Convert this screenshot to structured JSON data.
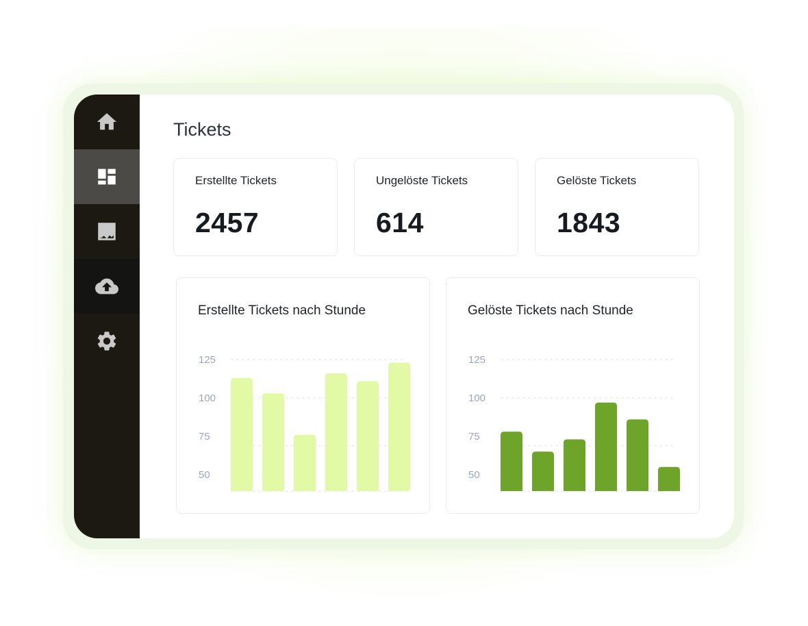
{
  "sidebar": {
    "items": [
      {
        "icon": "home-icon",
        "label": "Home"
      },
      {
        "icon": "dashboard-icon",
        "label": "Dashboard"
      },
      {
        "icon": "analytics-icon",
        "label": "Analytics"
      },
      {
        "icon": "cloud-upload-icon",
        "label": "Upload"
      },
      {
        "icon": "gear-icon",
        "label": "Settings"
      }
    ],
    "active_index": 1
  },
  "page": {
    "title": "Tickets"
  },
  "stats": [
    {
      "label": "Erstellte Tickets",
      "value": "2457"
    },
    {
      "label": "Ungelöste Tickets",
      "value": "614"
    },
    {
      "label": "Gelöste Tickets",
      "value": "1843"
    }
  ],
  "colors": {
    "sidebar_bg": "#1c1912",
    "created_bar": "#e2f9a6",
    "resolved_bar": "#6fa42a",
    "tick_text": "#9aa6bd"
  },
  "chart_data": [
    {
      "type": "bar",
      "title": "Erstellte Tickets nach Stunde",
      "yticks": [
        50,
        75,
        100,
        125
      ],
      "ylim": [
        40,
        125
      ],
      "grid": true,
      "color": "#e2f9a6",
      "values": [
        113,
        103,
        76,
        116,
        111,
        123
      ]
    },
    {
      "type": "bar",
      "title": "Gelöste Tickets nach Stunde",
      "yticks": [
        50,
        75,
        100,
        125
      ],
      "ylim": [
        40,
        125
      ],
      "grid": true,
      "color": "#6fa42a",
      "values": [
        78,
        65,
        73,
        97,
        86,
        55
      ]
    }
  ]
}
